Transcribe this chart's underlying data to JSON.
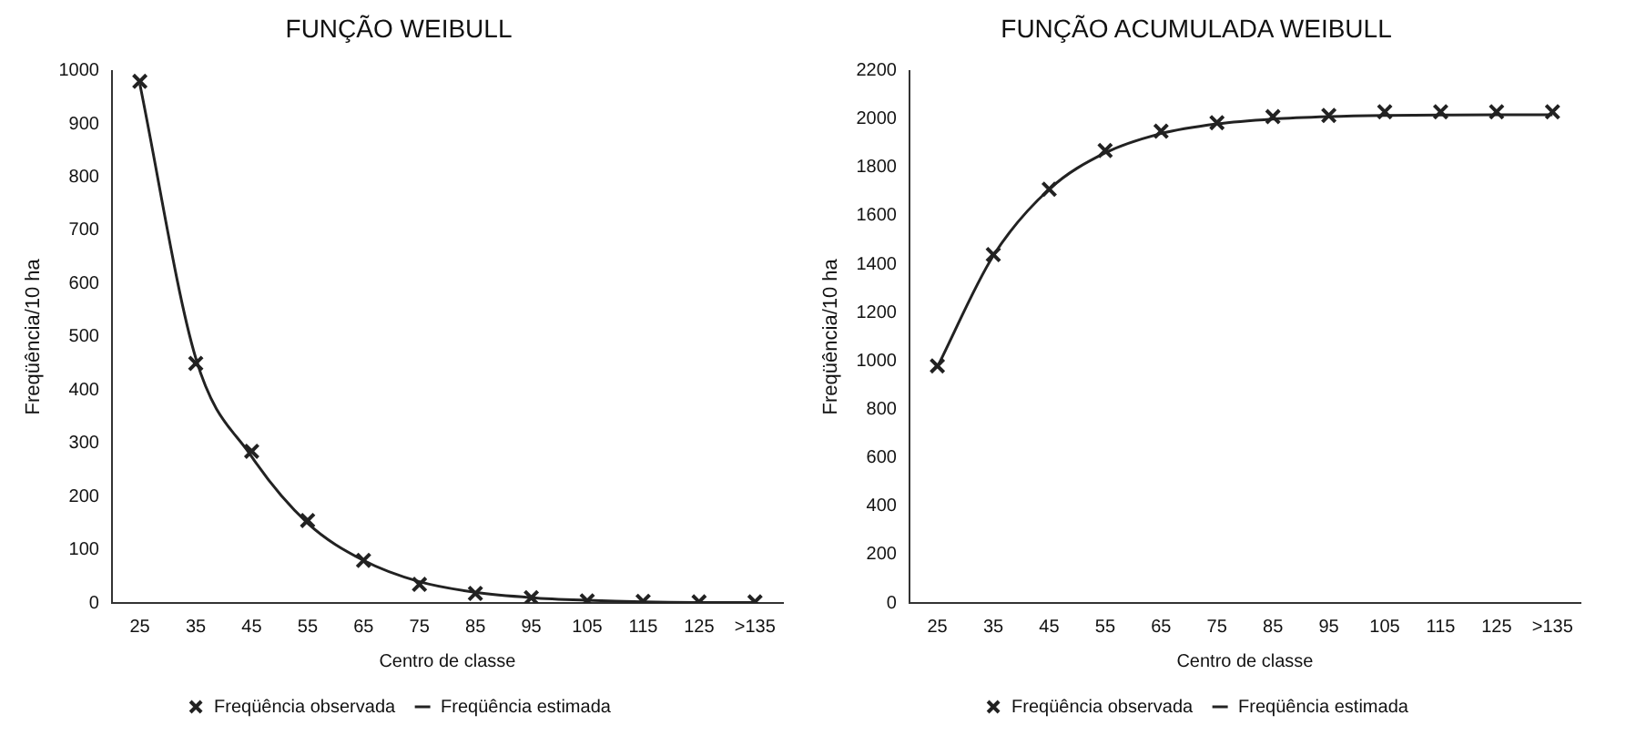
{
  "chart_data": [
    {
      "type": "line",
      "title": "FUNÇÃO WEIBULL",
      "xlabel": "Centro de classe",
      "ylabel": "Freqüência/10 ha",
      "categories": [
        "25",
        "35",
        "45",
        "55",
        "65",
        "75",
        "85",
        "95",
        "105",
        "115",
        "125",
        ">135"
      ],
      "series": [
        {
          "name": "Freqüência observada",
          "type": "scatter",
          "color": "#222222",
          "marker": "cross",
          "values": [
            980,
            450,
            285,
            155,
            80,
            35,
            18,
            10,
            4,
            3,
            2,
            2
          ]
        },
        {
          "name": "Freqüência estimada",
          "type": "line",
          "color": "#222222",
          "marker": "none",
          "line_style": "solid",
          "values": [
            975,
            460,
            275,
            150,
            80,
            40,
            20,
            10,
            5,
            2,
            1,
            1
          ]
        }
      ],
      "ylim": [
        0,
        1000
      ],
      "yticks": [
        0,
        100,
        200,
        300,
        400,
        500,
        600,
        700,
        800,
        900,
        1000
      ],
      "grid": false,
      "legend": "bottom"
    },
    {
      "type": "line",
      "title": "FUNÇÃO ACUMULADA WEIBULL",
      "xlabel": "Centro de classe",
      "ylabel": "Freqüência/10 ha",
      "categories": [
        "25",
        "35",
        "45",
        "55",
        "65",
        "75",
        "85",
        "95",
        "105",
        "115",
        "125",
        ">135"
      ],
      "series": [
        {
          "name": "Freqüência observada",
          "type": "scatter",
          "color": "#222222",
          "marker": "cross",
          "values": [
            980,
            1440,
            1710,
            1870,
            1950,
            1985,
            2010,
            2015,
            2030,
            2030,
            2030,
            2030
          ]
        },
        {
          "name": "Freqüência estimada",
          "type": "line",
          "color": "#222222",
          "marker": "none",
          "line_style": "solid",
          "values": [
            975,
            1435,
            1710,
            1860,
            1940,
            1980,
            2000,
            2010,
            2015,
            2017,
            2018,
            2018
          ]
        }
      ],
      "ylim": [
        0,
        2200
      ],
      "yticks": [
        0,
        200,
        400,
        600,
        800,
        1000,
        1200,
        1400,
        1600,
        1800,
        2000,
        2200
      ],
      "grid": false,
      "legend": "bottom"
    }
  ]
}
